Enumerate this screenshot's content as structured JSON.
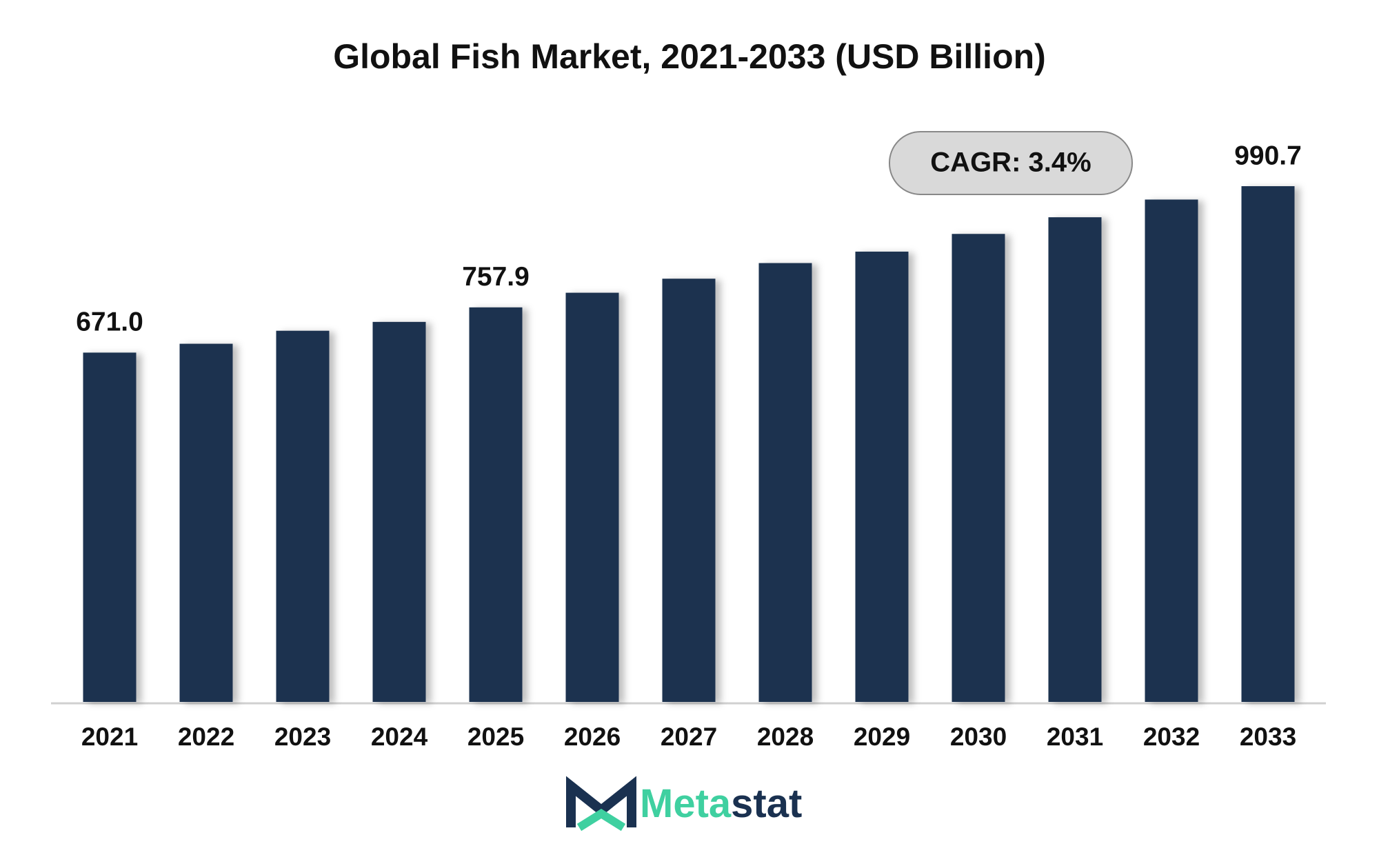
{
  "chart_data": {
    "type": "bar",
    "title": "Global Fish Market, 2021-2033 (USD Billion)",
    "categories": [
      "2021",
      "2022",
      "2023",
      "2024",
      "2025",
      "2026",
      "2027",
      "2028",
      "2029",
      "2030",
      "2031",
      "2032",
      "2033"
    ],
    "values": [
      671.0,
      688,
      713,
      730,
      757.9,
      786,
      813,
      843,
      865,
      899,
      931,
      965,
      990.7
    ],
    "value_labels": [
      "671.0",
      null,
      null,
      null,
      "757.9",
      null,
      null,
      null,
      null,
      null,
      null,
      null,
      "990.7"
    ],
    "color": "#1a3150",
    "ylim": [
      0,
      1000
    ],
    "annotation": "CAGR: 3.4%",
    "brand": {
      "highlight": "Meta",
      "rest": "stat"
    }
  }
}
